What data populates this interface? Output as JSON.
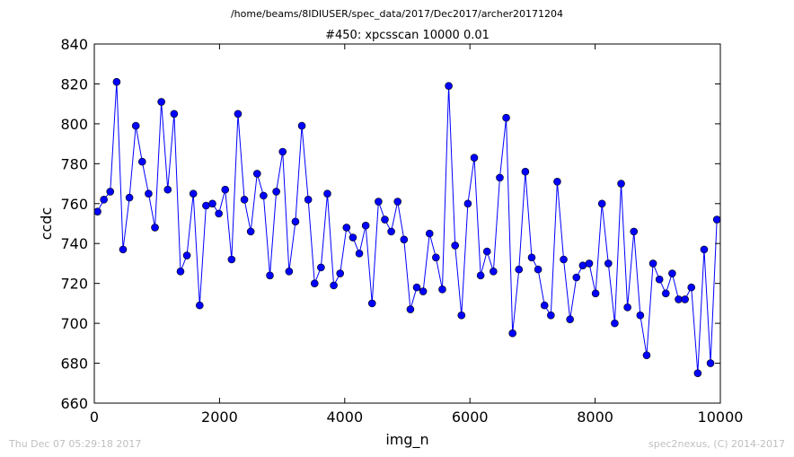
{
  "figure": {
    "path": "/home/beams/8IDIUSER/spec_data/2017/Dec2017/archer20171204",
    "footer_left": "Thu Dec 07 05:29:18 2017",
    "footer_right": "spec2nexus, (C) 2014-2017"
  },
  "chart_data": {
    "type": "line",
    "title": "#450: xpcsscan 10000 0.01",
    "xlabel": "img_n",
    "ylabel": "ccdc",
    "xlim": [
      0,
      10000
    ],
    "ylim": [
      660,
      840
    ],
    "xticks": [
      0,
      2000,
      4000,
      6000,
      8000,
      10000
    ],
    "yticks": [
      660,
      680,
      700,
      720,
      740,
      760,
      780,
      800,
      820,
      840
    ],
    "grid": false,
    "marker": "circle",
    "line_color": "#0000ff",
    "x": [
      51,
      153,
      255,
      357,
      459,
      561,
      663,
      765,
      867,
      969,
      1071,
      1173,
      1275,
      1377,
      1479,
      1581,
      1683,
      1785,
      1887,
      1989,
      2091,
      2193,
      2295,
      2397,
      2499,
      2601,
      2703,
      2805,
      2907,
      3009,
      3111,
      3213,
      3315,
      3417,
      3519,
      3621,
      3723,
      3825,
      3927,
      4029,
      4131,
      4233,
      4335,
      4437,
      4539,
      4641,
      4743,
      4845,
      4947,
      5049,
      5151,
      5253,
      5355,
      5457,
      5559,
      5661,
      5763,
      5865,
      5967,
      6069,
      6171,
      6273,
      6375,
      6477,
      6579,
      6681,
      6783,
      6885,
      6987,
      7089,
      7191,
      7293,
      7395,
      7497,
      7599,
      7701,
      7803,
      7905,
      8007,
      8109,
      8211,
      8313,
      8415,
      8517,
      8619,
      8721,
      8823,
      8925,
      9027,
      9129,
      9231,
      9333,
      9435,
      9537,
      9639,
      9741,
      9843,
      9945
    ],
    "y": [
      756,
      762,
      766,
      821,
      737,
      763,
      799,
      781,
      765,
      748,
      811,
      767,
      805,
      726,
      734,
      765,
      709,
      759,
      760,
      755,
      767,
      732,
      805,
      762,
      746,
      775,
      764,
      724,
      766,
      786,
      726,
      751,
      799,
      762,
      720,
      728,
      765,
      719,
      725,
      748,
      743,
      735,
      749,
      710,
      761,
      752,
      746,
      761,
      742,
      707,
      718,
      716,
      745,
      733,
      717,
      819,
      739,
      704,
      760,
      783,
      724,
      736,
      726,
      773,
      803,
      695,
      727,
      776,
      733,
      727,
      709,
      704,
      771,
      732,
      702,
      723,
      729,
      730,
      715,
      760,
      730,
      700,
      770,
      708,
      746,
      704,
      684,
      730,
      722,
      715,
      725,
      712,
      712,
      718,
      675,
      737,
      680,
      752
    ]
  }
}
